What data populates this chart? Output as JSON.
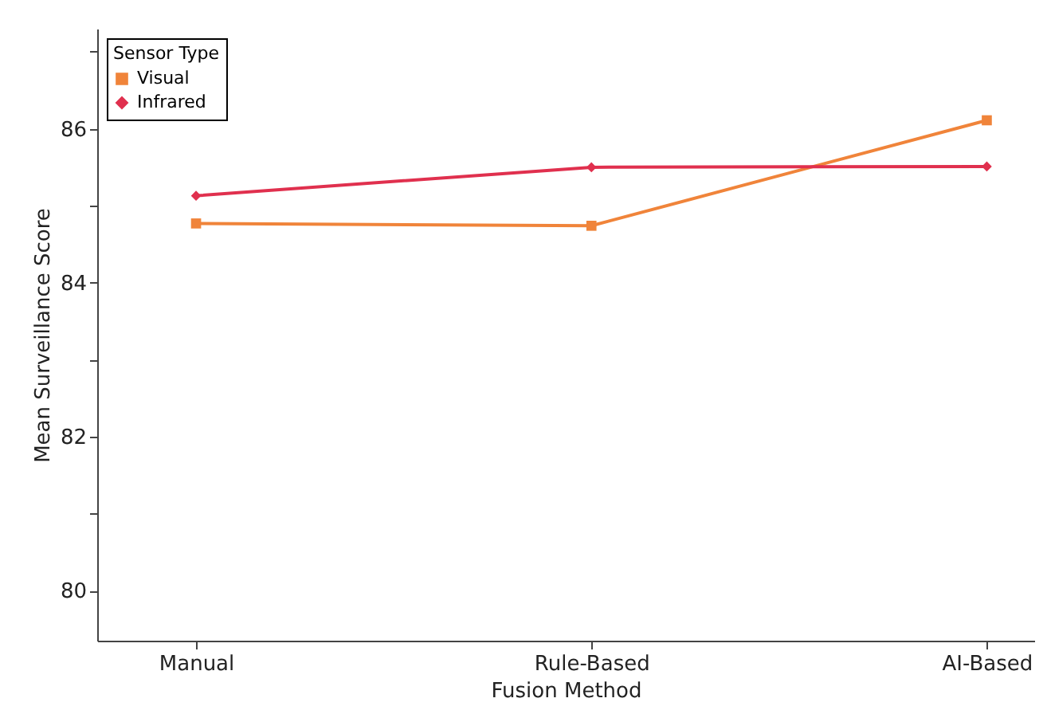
{
  "chart_data": {
    "type": "line",
    "xlabel": "Fusion Method",
    "ylabel": "Mean Surveillance Score",
    "legend_title": "Sensor Type",
    "categories": [
      "Manual",
      "Rule-Based",
      "AI-Based"
    ],
    "series": [
      {
        "name": "Visual",
        "color": "#f0843a",
        "marker": "square",
        "values": [
          84.77,
          84.74,
          86.11
        ]
      },
      {
        "name": "Infrared",
        "color": "#e0304e",
        "marker": "diamond",
        "values": [
          85.13,
          85.5,
          85.51
        ]
      }
    ],
    "ylim": [
      79.35,
      87.3
    ],
    "yticks": [
      80,
      {
        "value": 81,
        "label": null
      },
      82,
      {
        "value": 83,
        "label": null
      },
      84,
      {
        "value": 85,
        "label": null
      },
      86,
      {
        "value": 87,
        "label": null
      }
    ],
    "grid": false,
    "legend": "top left",
    "line_style": "solid"
  }
}
